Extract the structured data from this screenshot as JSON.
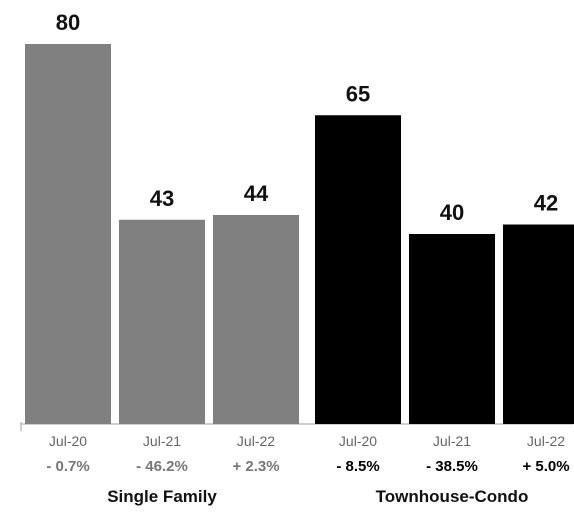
{
  "chart_data": {
    "type": "bar",
    "ylim": [
      0,
      80
    ],
    "grid": false,
    "groups": [
      {
        "name": "Single Family",
        "color": "#808080",
        "change_color": "#777777",
        "bars": [
          {
            "category": "Jul-20",
            "value": 80,
            "change": "- 0.7%"
          },
          {
            "category": "Jul-21",
            "value": 43,
            "change": "- 46.2%"
          },
          {
            "category": "Jul-22",
            "value": 44,
            "change": "+ 2.3%"
          }
        ]
      },
      {
        "name": "Townhouse-Condo",
        "color": "#000000",
        "change_color": "#000000",
        "bars": [
          {
            "category": "Jul-20",
            "value": 65,
            "change": "- 8.5%"
          },
          {
            "category": "Jul-21",
            "value": 40,
            "change": "- 38.5%"
          },
          {
            "category": "Jul-22",
            "value": 42,
            "change": "+ 5.0%"
          }
        ]
      }
    ]
  }
}
